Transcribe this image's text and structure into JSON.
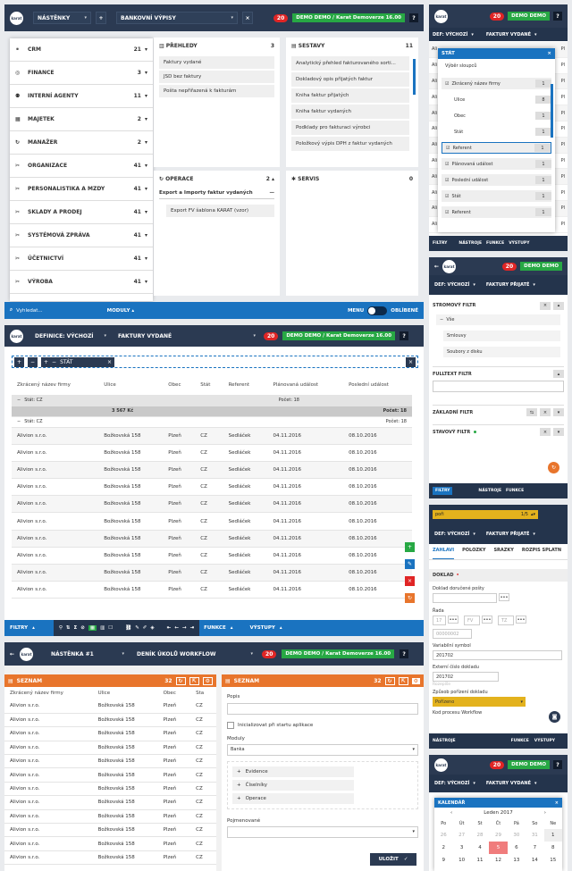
{
  "p1": {
    "nav_select": "NÁSTĚNKY",
    "board_select": "BANKOVNÍ VÝPISY",
    "badge": "20",
    "demo": "DEMO DEMO / Karat Demoverze 16.00",
    "help": "?",
    "menu": [
      {
        "label": "CRM",
        "count": "21",
        "icon": "handshake-icon"
      },
      {
        "label": "FINANCE",
        "count": "3",
        "icon": "coins-icon"
      },
      {
        "label": "INTERNÍ AGENTY",
        "count": "11",
        "icon": "agents-icon"
      },
      {
        "label": "MAJETEK",
        "count": "2",
        "icon": "grid-icon"
      },
      {
        "label": "MANAŽER",
        "count": "2",
        "icon": "refresh-icon"
      },
      {
        "label": "ORGANIZACE",
        "count": "41",
        "icon": "tools-icon"
      },
      {
        "label": "PERSONALISTIKA A MZDY",
        "count": "41",
        "icon": "tools-icon"
      },
      {
        "label": "SKLADY A PRODEJ",
        "count": "41",
        "icon": "tools-icon"
      },
      {
        "label": "SYSTÉMOVÁ ZPRÁVA",
        "count": "41",
        "icon": "tools-icon"
      },
      {
        "label": "ÚČETNICTVÍ",
        "count": "41",
        "icon": "tools-icon"
      },
      {
        "label": "VÝROBA",
        "count": "41",
        "icon": "tools-icon"
      }
    ],
    "prehledy": {
      "title": "PŘEHLEDY",
      "count": "3",
      "items": [
        "Faktury vydané",
        "JSD bez faktury",
        "Pošta nepřiřazená k fakturám"
      ]
    },
    "sestavy": {
      "title": "SESTAVY",
      "count": "11",
      "items": [
        "Analytický přehled fakturovaného sorti...",
        "Dokladový opis přijatých faktur",
        "Kniha faktur přijatých",
        "Kniha faktur vydaných",
        "Podklady pro fakturaci výrobci",
        "Položkový výpis DPH z faktur vydaných"
      ]
    },
    "operace": {
      "title": "OPERACE",
      "count": "2",
      "group": "Export a Importy faktur vydaných",
      "item": "Export FV šablona KARAT (vzor)"
    },
    "servis": {
      "title": "SERVIS",
      "count": "0"
    },
    "bottom": {
      "search": "Vyhledat...",
      "moduly": "MODULY",
      "menu": "MENU",
      "oblibene": "OBLÍBENÉ"
    }
  },
  "p2": {
    "definice": "DEFINICE: VÝCHOZÍ",
    "view": "FAKTURY VYDANÉ",
    "badge": "20",
    "demo": "DEMO DEMO / Karat Demoverze 16.00",
    "help": "?",
    "group_tag": "STÁT",
    "columns": [
      "Zkrácený název firmy",
      "Ulice",
      "Obec",
      "Stát",
      "Referent",
      "Plánovaná událost",
      "Poslední událost"
    ],
    "group1_label": "Stát: CZ",
    "group1_count": "Počet: 18",
    "sum_value": "3 567 Kč",
    "sum_count": "Počet: 18",
    "group2_label": "Stát: CZ",
    "group2_count": "Počet: 18",
    "row": {
      "firma": "Alivion s.r.o.",
      "ulice": "Božkovská 158",
      "obec": "Plzeň",
      "stat": "CZ",
      "referent": "Sedláček",
      "plan": "04.11.2016",
      "posl": "08.10.2016"
    },
    "row_count_visible": 10,
    "bottom": {
      "filtry": "FILTRY",
      "funkce": "FUNKCE",
      "vystupy": "VÝSTUPY"
    }
  },
  "p3": {
    "board": "NÁSTĚNKA #1",
    "view": "DENÍK ÚKOLŮ WORKFLOW",
    "badge": "20",
    "demo": "DEMO DEMO / Karat Demoverze 16.00",
    "help": "?",
    "left_title": "SEZNAM",
    "left_count": "32",
    "columns": [
      "Zkrácený název firmy",
      "Ulice",
      "Obec",
      "Sta"
    ],
    "row": {
      "firma": "Alivion s.r.o.",
      "ulice": "Božkovská 158",
      "obec": "Plzeň",
      "stat": "CZ"
    },
    "right_title": "SEZNAM",
    "right_count": "32",
    "form": {
      "popis_label": "Popis",
      "init_label": "Inicializovat při startu aplikace",
      "moduly_label": "Moduly",
      "moduly_value": "Banka",
      "modules": [
        "Evidence",
        "Číselníky",
        "Operace"
      ],
      "pojmenovane_label": "Pojmenované",
      "submit": "ULOŽIT"
    }
  },
  "r1": {
    "badge": "20",
    "demo": "DEMO DEMO",
    "help": "?",
    "definice": "DEF: VÝCHOZÍ",
    "view": "FAKTURY VYDANÉ",
    "popup_title": "STÁT",
    "popup_sub": "Výběr sloupců",
    "cols": [
      {
        "label": "Zkrácený název firmy",
        "count": "1",
        "checked": true
      },
      {
        "label": "Ulice",
        "count": "8",
        "checked": false
      },
      {
        "label": "Obec",
        "count": "1",
        "checked": false
      },
      {
        "label": "Stát",
        "count": "1",
        "checked": false
      },
      {
        "label": "Referent",
        "count": "1",
        "checked": true
      },
      {
        "label": "Plánovaná událost",
        "count": "1",
        "checked": true
      },
      {
        "label": "Poslední událost",
        "count": "1",
        "checked": true
      },
      {
        "label": "Stát",
        "count": "1",
        "checked": true
      },
      {
        "label": "Referent",
        "count": "1",
        "checked": true
      }
    ],
    "behind_left": "Ali",
    "behind_right": "Pl",
    "bottom": {
      "filtry": "FILTRY",
      "nastroje": "NÁSTROJE",
      "funkce": "FUNKCE",
      "vystupy": "VÝSTUPY"
    }
  },
  "r2": {
    "badge": "20",
    "demo": "DEMO DEMO",
    "definice": "DEF: VÝCHOZÍ",
    "view": "FAKTURY PŘIJATÉ",
    "stromovy": "STROMOVÝ FILTR",
    "tree_root": "Vše",
    "tree_items": [
      "Smlouvy",
      "Soubory z disku"
    ],
    "fulltext": "FULLTEXT FILTR",
    "zakladni": "ZÁKLADNÍ FILTR",
    "stavovy": "STAVOVÝ FILTR",
    "bottom": {
      "filtry": "FILTRY",
      "nastroje": "NÁSTROJE",
      "funkce": "FUNKCE"
    }
  },
  "r3": {
    "search_value": "poři",
    "search_count": "1/5",
    "definice": "DEF: VÝCHOZÍ",
    "view": "FAKTURY PŘIJATÉ",
    "tabs": [
      "ZÁHLAVÍ",
      "POLOŽKY",
      "SRÁŽKY",
      "ROZPIS SPLÁTN"
    ],
    "section": "DOKLAD",
    "fields": {
      "doruceni_label": "Doklad doručené pošty",
      "rada_label": "Řada",
      "rada_parts": [
        "17",
        "FV",
        "TZ"
      ],
      "rada_number": "00000002",
      "var_label": "Variabilní symbol",
      "var_value": "201702",
      "ext_label": "Externí číslo dokladu",
      "ext_value": "201702",
      "ext_hint": "Rozepíše",
      "zpusob_label": "Způsob pořízení dokladu",
      "zpusob_value": "Pořízeno",
      "kod_label": "Kod procesu Workflow"
    },
    "bottom": {
      "nastroje": "NÁSTROJE",
      "funkce": "FUNKCE",
      "vystupy": "VÝSTUPY"
    }
  },
  "r4": {
    "badge": "20",
    "demo": "DEMO DEMO",
    "help": "?",
    "definice": "DEF: VÝCHOZÍ",
    "view": "FAKTURY VYDANÉ",
    "cal_title": "KALENDÁŘ",
    "month": "Leden 2017",
    "days": [
      "Po",
      "Út",
      "St",
      "Čt",
      "Pá",
      "So",
      "Ne"
    ],
    "week1": [
      "26",
      "27",
      "28",
      "29",
      "30",
      "31",
      "1"
    ],
    "week2": [
      "2",
      "3",
      "4",
      "5",
      "6",
      "7",
      "8"
    ],
    "week3": [
      "9",
      "10",
      "11",
      "12",
      "13",
      "14",
      "15"
    ]
  }
}
